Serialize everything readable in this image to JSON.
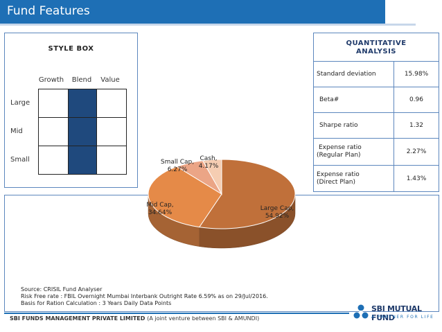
{
  "header": {
    "title": "Fund Features"
  },
  "style_box": {
    "title": "STYLE BOX",
    "columns": [
      "Growth",
      "Blend",
      "Value"
    ],
    "rows": [
      "Large",
      "Mid",
      "Small"
    ],
    "selected_column": "Blend"
  },
  "quantitative_analysis": {
    "title_line1": "QUANTITATIVE",
    "title_line2": "ANALYSIS",
    "rows": [
      {
        "label": "Standard deviation",
        "value": "15.98%"
      },
      {
        "label": "Beta#",
        "value": "0.96"
      },
      {
        "label": "Sharpe  ratio",
        "value": "1.32"
      },
      {
        "label_line1": "Expense ratio",
        "label_line2": "(Regular Plan)",
        "value": "2.27%"
      },
      {
        "label_line1": "Expense ratio",
        "label_line2": "(Direct Plan)",
        "value": "1.43%"
      }
    ]
  },
  "chart_data": {
    "type": "pie",
    "title": "",
    "slices": [
      {
        "name": "Large Cap,",
        "value": 54.92,
        "label": "54.92%",
        "color": "#c0703a"
      },
      {
        "name": "Mid Cap,",
        "value": 34.64,
        "label": "34.64%",
        "color": "#e58a48"
      },
      {
        "name": "Small Cap,",
        "value": 6.27,
        "label": "6.27%",
        "color": "#eba586"
      },
      {
        "name": "Cash,",
        "value": 4.17,
        "label": "4.17%",
        "color": "#f5cdb2"
      }
    ]
  },
  "source": {
    "line1": "Source: CRISIL Fund Analyser",
    "line2": "Risk Free rate : FBIL Overnight Mumbai Interbank Outright Rate 6.59% as on 29/Jul/2016.",
    "line3": "Basis for Ration Calculation : 3 Years Daily Data Points"
  },
  "footer": {
    "company": "SBI FUNDS MANAGEMENT PRIVATE LIMITED",
    "subtitle": "(A joint venture between SBI & AMUNDI)"
  },
  "logo": {
    "name": "SBI MUTUAL FUND",
    "tagline": "A PARTNER FOR LIFE"
  },
  "colors": {
    "header": "#1e6fb5",
    "style_fill": "#1f497d",
    "border": "#5b86bd"
  }
}
